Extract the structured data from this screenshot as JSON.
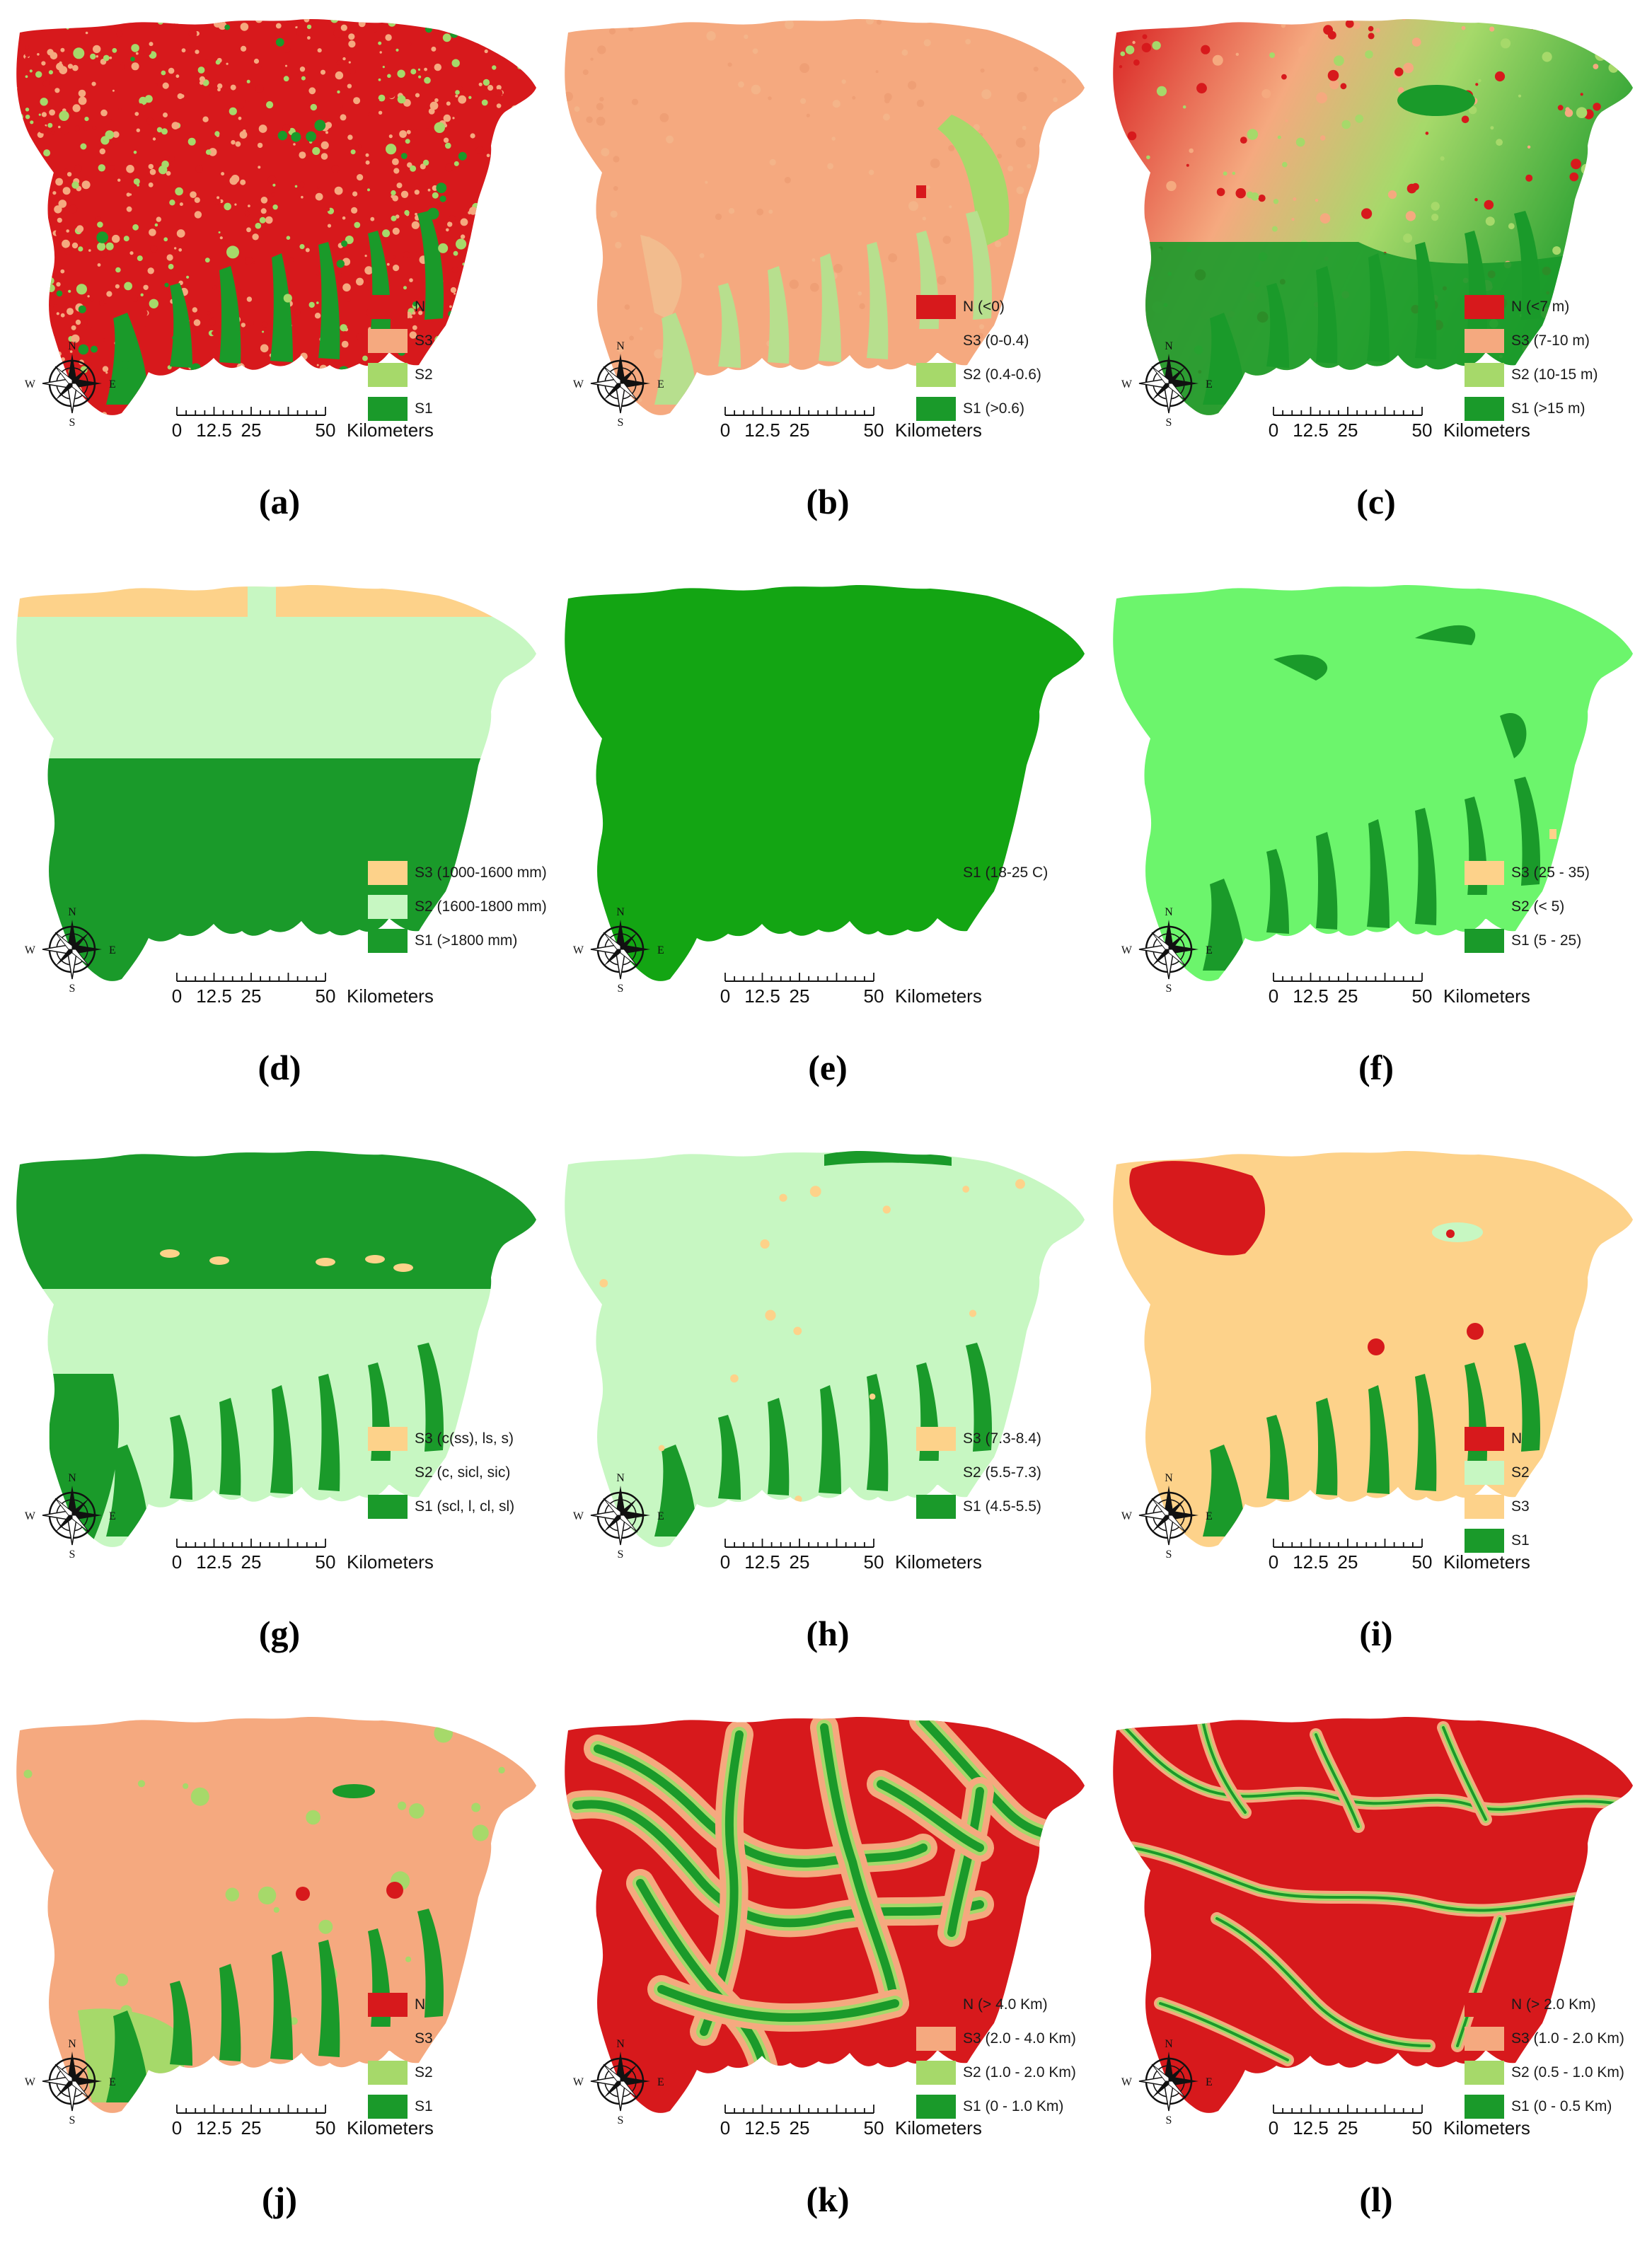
{
  "scale_bar": {
    "ticks": [
      "0",
      "12.5",
      "25",
      "50"
    ],
    "unit": "Kilometers"
  },
  "compass": {
    "n": "N",
    "e": "E",
    "s": "S",
    "w": "W"
  },
  "colors": {
    "N": "#d7191c",
    "S3_orange": "#f5a97f",
    "S3_yellow": "#fdd28a",
    "S2_green": "#a6d96a",
    "S2_pale": "#c7f7c2",
    "S2_bright": "#6cf56c",
    "S1_dark": "#1a9a2a",
    "S1_mid": "#13a513"
  },
  "panels": [
    {
      "id": "a",
      "label": "(a)",
      "style": "speckle_red",
      "legend": [
        {
          "text": "N",
          "color": "#d7191c"
        },
        {
          "text": "S3",
          "color": "#f5a97f"
        },
        {
          "text": "S2",
          "color": "#a6d96a"
        },
        {
          "text": "S1",
          "color": "#1a9a2a"
        }
      ]
    },
    {
      "id": "b",
      "label": "(b)",
      "style": "uniform_orange",
      "legend": [
        {
          "text": "N   (<0)",
          "color": "#d7191c"
        },
        {
          "text": "S3 (0-0.4)",
          "color": "#f5a97f"
        },
        {
          "text": "S2 (0.4-0.6)",
          "color": "#a6d96a"
        },
        {
          "text": "S1 (>0.6)",
          "color": "#1a9a2a"
        }
      ]
    },
    {
      "id": "c",
      "label": "(c)",
      "style": "gradient_red_green",
      "legend": [
        {
          "text": "N   (<7 m)",
          "color": "#d7191c"
        },
        {
          "text": "S3 (7-10 m)",
          "color": "#f5a97f"
        },
        {
          "text": "S2 (10-15 m)",
          "color": "#a6d96a"
        },
        {
          "text": "S1 (>15 m)",
          "color": "#1a9a2a"
        }
      ]
    },
    {
      "id": "d",
      "label": "(d)",
      "style": "bands_rainfall",
      "legend": [
        {
          "text": "S3 (1000-1600 mm)",
          "color": "#fdd28a"
        },
        {
          "text": "S2 (1600-1800 mm)",
          "color": "#c7f7c2"
        },
        {
          "text": "S1 (>1800 mm)",
          "color": "#1a9a2a"
        }
      ]
    },
    {
      "id": "e",
      "label": "(e)",
      "style": "solid_green",
      "legend": [
        {
          "text": "S1 (18-25 C)",
          "color": "#13a513"
        }
      ]
    },
    {
      "id": "f",
      "label": "(f)",
      "style": "bright_green",
      "legend": [
        {
          "text": "S3 (25 - 35)",
          "color": "#fdd28a"
        },
        {
          "text": "S2 (< 5)",
          "color": "#6cf56c"
        },
        {
          "text": "S1 (5 - 25)",
          "color": "#1a9a2a"
        }
      ]
    },
    {
      "id": "g",
      "label": "(g)",
      "style": "texture_bands",
      "legend": [
        {
          "text": "S3 (c(ss), ls, s)",
          "color": "#fdd28a"
        },
        {
          "text": "S2 (c, sicl, sic)",
          "color": "#c7f7c2"
        },
        {
          "text": "S1 (scl, l, cl, sl)",
          "color": "#1a9a2a"
        }
      ]
    },
    {
      "id": "h",
      "label": "(h)",
      "style": "pale_green",
      "legend": [
        {
          "text": "S3 (7.3-8.4)",
          "color": "#fdd28a"
        },
        {
          "text": "S2 (5.5-7.3)",
          "color": "#c7f7c2"
        },
        {
          "text": "S1 (4.5-5.5)",
          "color": "#1a9a2a"
        }
      ]
    },
    {
      "id": "i",
      "label": "(i)",
      "style": "yellow_red",
      "legend": [
        {
          "text": "N",
          "color": "#d7191c"
        },
        {
          "text": "S2",
          "color": "#c7f7c2"
        },
        {
          "text": "S3",
          "color": "#fdd28a"
        },
        {
          "text": "S1",
          "color": "#1a9a2a"
        }
      ]
    },
    {
      "id": "j",
      "label": "(j)",
      "style": "orange_green",
      "legend": [
        {
          "text": "N",
          "color": "#d7191c"
        },
        {
          "text": "S3",
          "color": "#f5a97f"
        },
        {
          "text": "S2",
          "color": "#a6d96a"
        },
        {
          "text": "S1",
          "color": "#1a9a2a"
        }
      ]
    },
    {
      "id": "k",
      "label": "(k)",
      "style": "road_network",
      "legend": [
        {
          "text": "N  (> 4.0 Km)",
          "color": "#d7191c"
        },
        {
          "text": "S3 (2.0 - 4.0 Km)",
          "color": "#f5a97f"
        },
        {
          "text": "S2 (1.0 - 2.0 Km)",
          "color": "#a6d96a"
        },
        {
          "text": "S1 (0 - 1.0 Km)",
          "color": "#1a9a2a"
        }
      ]
    },
    {
      "id": "l",
      "label": "(l)",
      "style": "river_network",
      "legend": [
        {
          "text": "N  (> 2.0 Km)",
          "color": "#d7191c"
        },
        {
          "text": "S3 (1.0 - 2.0 Km)",
          "color": "#f5a97f"
        },
        {
          "text": "S2 (0.5 - 1.0 Km)",
          "color": "#a6d96a"
        },
        {
          "text": "S1 (0 - 0.5 Km)",
          "color": "#1a9a2a"
        }
      ]
    }
  ]
}
